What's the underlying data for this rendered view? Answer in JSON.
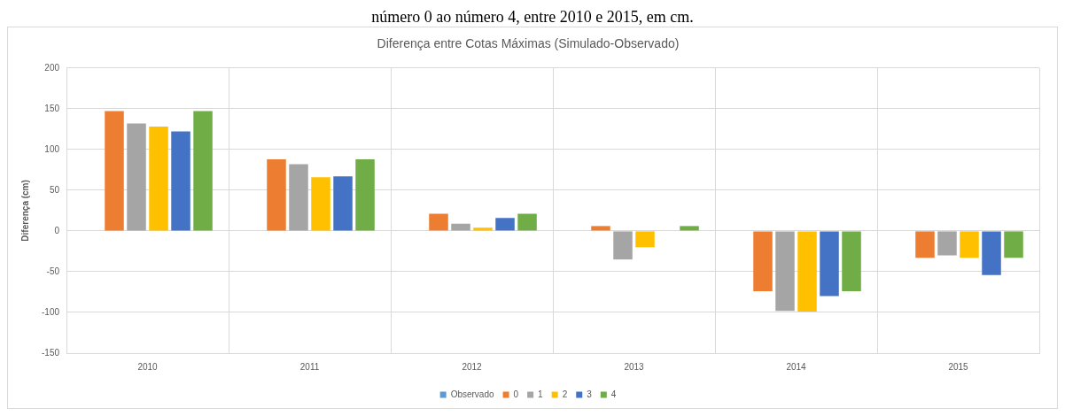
{
  "chart_data": {
    "type": "bar",
    "title": "Diferença entre Cotas Máximas (Simulado-Observado)",
    "ylabel": "Diferença (cm)",
    "annotations": [
      "número 0 ao número 4, entre 2010 e 2015, em cm."
    ],
    "categories": [
      "2010",
      "2011",
      "2012",
      "2013",
      "2014",
      "2015"
    ],
    "series": [
      {
        "name": "Observado",
        "color": "#5b9bd5",
        "values": [
          0,
          0,
          0,
          0,
          0,
          0
        ]
      },
      {
        "name": "0",
        "color": "#ed7d31",
        "values": [
          147,
          88,
          21,
          6,
          -74,
          -33
        ]
      },
      {
        "name": "1",
        "color": "#a5a5a5",
        "values": [
          132,
          82,
          9,
          -35,
          -98,
          -30
        ]
      },
      {
        "name": "2",
        "color": "#ffc000",
        "values": [
          128,
          66,
          4,
          -20,
          -99,
          -33
        ]
      },
      {
        "name": "3",
        "color": "#4472c4",
        "values": [
          122,
          67,
          16,
          0,
          -80,
          -54
        ]
      },
      {
        "name": "4",
        "color": "#70ad47",
        "values": [
          147,
          88,
          21,
          6,
          -74,
          -33
        ]
      }
    ],
    "ylim": [
      -150,
      200
    ],
    "yticks": [
      -150,
      -100,
      -50,
      0,
      50,
      100,
      150,
      200
    ],
    "grid": true,
    "legend": "bottom"
  }
}
